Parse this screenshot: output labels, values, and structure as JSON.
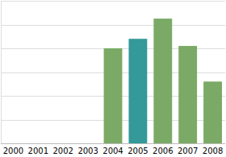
{
  "chart_data": {
    "type": "bar",
    "categories": [
      "2000",
      "2001",
      "2002",
      "2003",
      "2004",
      "2005",
      "2006",
      "2007",
      "2008"
    ],
    "values": [
      null,
      null,
      null,
      null,
      4.0,
      4.4,
      5.25,
      4.1,
      2.6
    ],
    "colors": [
      "#7aaa66",
      "#7aaa66",
      "#7aaa66",
      "#7aaa66",
      "#7aaa66",
      "#339999",
      "#7aaa66",
      "#7aaa66",
      "#7aaa66"
    ],
    "ylim": [
      0,
      6
    ],
    "yticks": [
      0,
      1,
      2,
      3,
      4,
      5,
      6
    ],
    "grid": true,
    "tick_labels": "x"
  }
}
